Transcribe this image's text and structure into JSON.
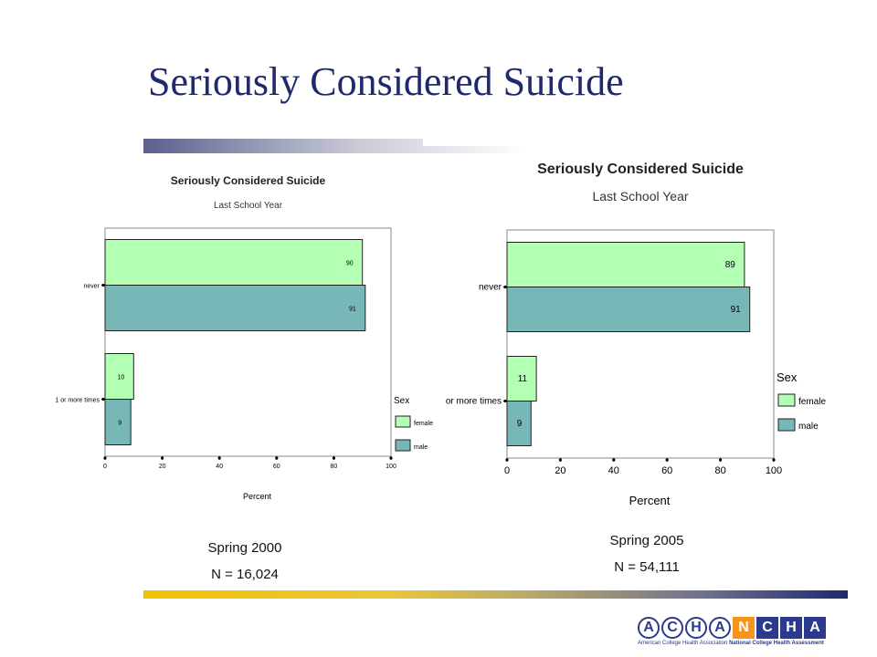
{
  "slide": {
    "title": "Seriously Considered Suicide"
  },
  "chart_data": [
    {
      "type": "bar",
      "orientation": "horizontal",
      "title": "Seriously Considered Suicide",
      "subtitle": "Last School Year",
      "xlabel": "Percent",
      "xlim": [
        0,
        100
      ],
      "xticks": [
        "0",
        "20",
        "40",
        "60",
        "80",
        "100"
      ],
      "categories": [
        "never",
        "1 or more times"
      ],
      "legend_title": "Sex",
      "legend_position": "bottom-right",
      "series": [
        {
          "name": "female",
          "values": [
            90,
            10
          ],
          "color": "#b3ffb3"
        },
        {
          "name": "male",
          "values": [
            91,
            9
          ],
          "color": "#77b7b7"
        }
      ],
      "data_labels": [
        [
          "90",
          "10"
        ],
        [
          "91",
          "9"
        ]
      ],
      "caption": {
        "line1": "Spring 2000",
        "line2": "N = 16,024"
      }
    },
    {
      "type": "bar",
      "orientation": "horizontal",
      "title": "Seriously Considered Suicide",
      "subtitle": "Last School Year",
      "xlabel": "Percent",
      "xlim": [
        0,
        100
      ],
      "xticks": [
        "0",
        "20",
        "40",
        "60",
        "80",
        "100"
      ],
      "categories": [
        "never",
        "or more times"
      ],
      "legend_title": "Sex",
      "legend_position": "bottom-right",
      "series": [
        {
          "name": "female",
          "values": [
            89,
            11
          ],
          "color": "#b3ffb3"
        },
        {
          "name": "male",
          "values": [
            91,
            9
          ],
          "color": "#77b7b7"
        }
      ],
      "data_labels": [
        [
          "89",
          "11"
        ],
        [
          "91",
          "9"
        ]
      ],
      "caption": {
        "line1": "Spring 2005",
        "line2": "N = 54,111"
      }
    }
  ],
  "logo": {
    "letters_outline": [
      "A",
      "C",
      "H",
      "A"
    ],
    "letters_box": [
      "N",
      "C",
      "H",
      "A"
    ],
    "box_colors": [
      "#f7941d",
      "#2b3a8c",
      "#2b3a8c",
      "#2b3a8c"
    ],
    "tagline_left": "American College Health Association",
    "tagline_right": "National College Health Assessment"
  }
}
